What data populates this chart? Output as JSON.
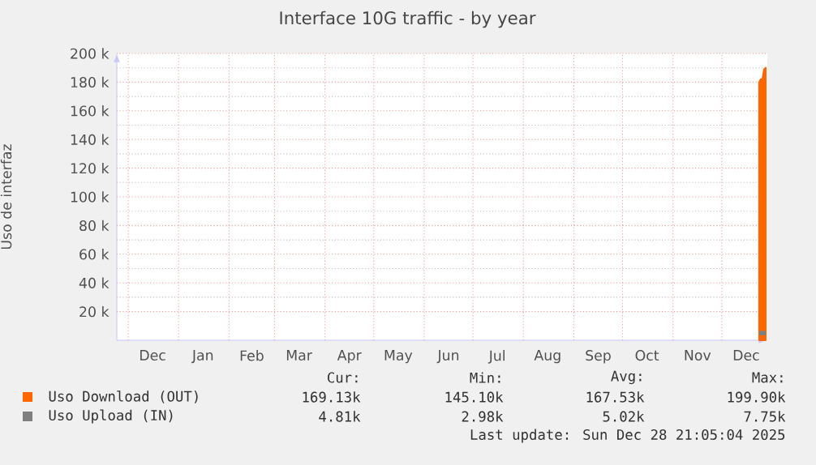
{
  "chart_data": {
    "type": "area",
    "title": "Interface 10G traffic - by year",
    "ylabel": "Uso de interfaz",
    "xlim": [
      "2024-11-24",
      "2025-12-29"
    ],
    "xticks": [
      {
        "value": "2024-12-01",
        "label": null
      },
      {
        "value": "2024-12-16",
        "label": "Dec"
      },
      {
        "value": "2025-01-01",
        "label": null
      },
      {
        "value": "2025-01-16",
        "label": "Jan"
      },
      {
        "value": "2025-02-01",
        "label": null
      },
      {
        "value": "2025-02-15",
        "label": "Feb"
      },
      {
        "value": "2025-03-01",
        "label": null
      },
      {
        "value": "2025-03-16",
        "label": "Mar"
      },
      {
        "value": "2025-04-01",
        "label": null
      },
      {
        "value": "2025-04-16",
        "label": "Apr"
      },
      {
        "value": "2025-05-01",
        "label": null
      },
      {
        "value": "2025-05-16",
        "label": "May"
      },
      {
        "value": "2025-06-01",
        "label": null
      },
      {
        "value": "2025-06-16",
        "label": "Jun"
      },
      {
        "value": "2025-07-01",
        "label": null
      },
      {
        "value": "2025-07-16",
        "label": "Jul"
      },
      {
        "value": "2025-08-01",
        "label": null
      },
      {
        "value": "2025-08-16",
        "label": "Aug"
      },
      {
        "value": "2025-09-01",
        "label": null
      },
      {
        "value": "2025-09-16",
        "label": "Sep"
      },
      {
        "value": "2025-10-01",
        "label": null
      },
      {
        "value": "2025-10-16",
        "label": "Oct"
      },
      {
        "value": "2025-11-01",
        "label": null
      },
      {
        "value": "2025-11-16",
        "label": "Nov"
      },
      {
        "value": "2025-12-01",
        "label": null
      },
      {
        "value": "2025-12-16",
        "label": "Dec"
      }
    ],
    "ylim": [
      0,
      200000
    ],
    "yticks": [
      {
        "value": 20000,
        "label": "20 k"
      },
      {
        "value": 40000,
        "label": "40 k"
      },
      {
        "value": 60000,
        "label": "60 k"
      },
      {
        "value": 80000,
        "label": "80 k"
      },
      {
        "value": 100000,
        "label": "100 k"
      },
      {
        "value": 120000,
        "label": "120 k"
      },
      {
        "value": 140000,
        "label": "140 k"
      },
      {
        "value": 160000,
        "label": "160 k"
      },
      {
        "value": 180000,
        "label": "180 k"
      },
      {
        "value": 200000,
        "label": "200 k"
      }
    ],
    "grid": true,
    "legend": "bottom",
    "series": [
      {
        "name": "Uso Download (OUT)",
        "color": "#ff6600",
        "x": [
          "2025-12-24",
          "2025-12-25",
          "2025-12-26",
          "2025-12-27",
          "2025-12-28"
        ],
        "values": [
          180000,
          182000,
          182000,
          189000,
          190000
        ]
      },
      {
        "name": "Uso Upload (IN)",
        "type": "line",
        "color": "#7f7f7f",
        "x": [
          "2025-12-24",
          "2025-12-25",
          "2025-12-26",
          "2025-12-27",
          "2025-12-28"
        ],
        "values": [
          5000,
          5000,
          5000,
          5000,
          5000
        ]
      }
    ],
    "annotations": [
      "Cur:",
      "Min:",
      "Avg:",
      "Max:",
      "169.13k",
      "145.10k",
      "167.53k",
      "199.90k",
      "4.81k",
      "2.98k",
      "5.02k",
      "7.75k",
      "Last update: Sun Dec 28 21:05:04 2025"
    ]
  }
}
